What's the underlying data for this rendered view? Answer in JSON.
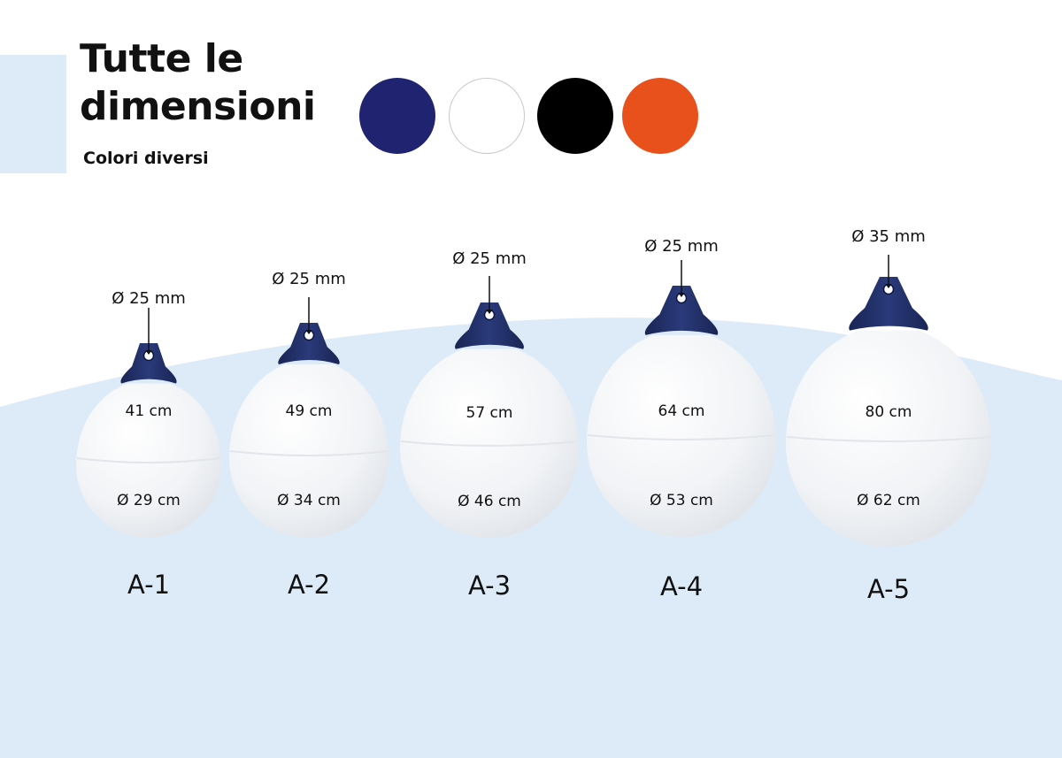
{
  "header": {
    "title_line1": "Tutte le",
    "title_line2": "dimensioni",
    "subtitle": "Colori diversi"
  },
  "color_swatches": [
    {
      "name": "navy-swatch",
      "color": "#1f2370"
    },
    {
      "name": "white-swatch",
      "color": "#ffffff"
    },
    {
      "name": "black-swatch",
      "color": "#000000"
    },
    {
      "name": "orange-swatch",
      "color": "#e8501c"
    }
  ],
  "colors": {
    "background_blue": "#ddebf8",
    "buoy_head": "#1e2a5e",
    "buoy_body": "#f6f7f9"
  },
  "buoys": [
    {
      "model": "A-1",
      "eye": "Ø 25 mm",
      "height": "41 cm",
      "diameter": "Ø 29 cm"
    },
    {
      "model": "A-2",
      "eye": "Ø 25 mm",
      "height": "49 cm",
      "diameter": "Ø 34 cm"
    },
    {
      "model": "A-3",
      "eye": "Ø 25 mm",
      "height": "57 cm",
      "diameter": "Ø 46 cm"
    },
    {
      "model": "A-4",
      "eye": "Ø 25 mm",
      "height": "64 cm",
      "diameter": "Ø 53 cm"
    },
    {
      "model": "A-5",
      "eye": "Ø 35 mm",
      "height": "80 cm",
      "diameter": "Ø 62 cm"
    }
  ]
}
